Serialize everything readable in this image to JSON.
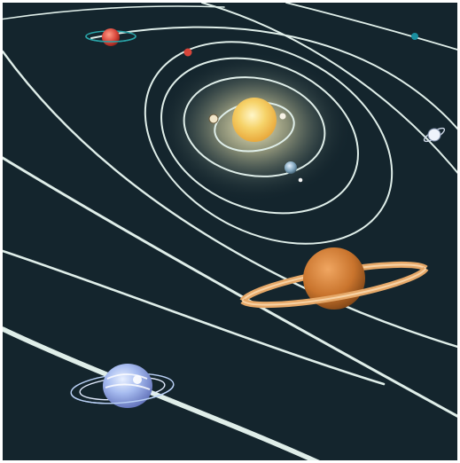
{
  "scene": {
    "subject": "solar-system-illustration",
    "colors": {
      "space": "#14252d",
      "orbit": "#dfeee9",
      "sun_core": "#f2c14e",
      "sun_glow": "#f6e7a8",
      "mars": "#d7453a",
      "saturn_body": "#c9742d",
      "saturn_ring": "#e6a868",
      "uranus": "#8ea6e8",
      "neptune": "#1a8fa0",
      "earth": "#7fa4bb"
    }
  }
}
